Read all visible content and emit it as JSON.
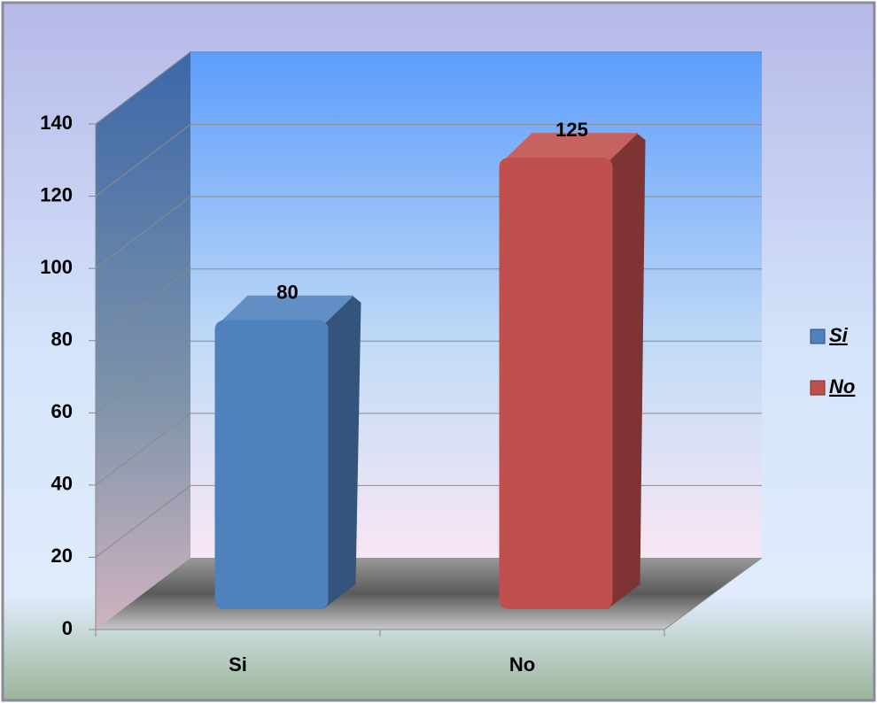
{
  "chart_data": {
    "type": "bar3d",
    "categories": [
      "Si",
      "No"
    ],
    "values": [
      80,
      125
    ],
    "colors": [
      "#4f81bd",
      "#c0504d"
    ],
    "ylim": [
      0,
      140
    ],
    "yticks": [
      0,
      20,
      40,
      60,
      80,
      100,
      120,
      140
    ],
    "grid": true,
    "legend": "right"
  }
}
